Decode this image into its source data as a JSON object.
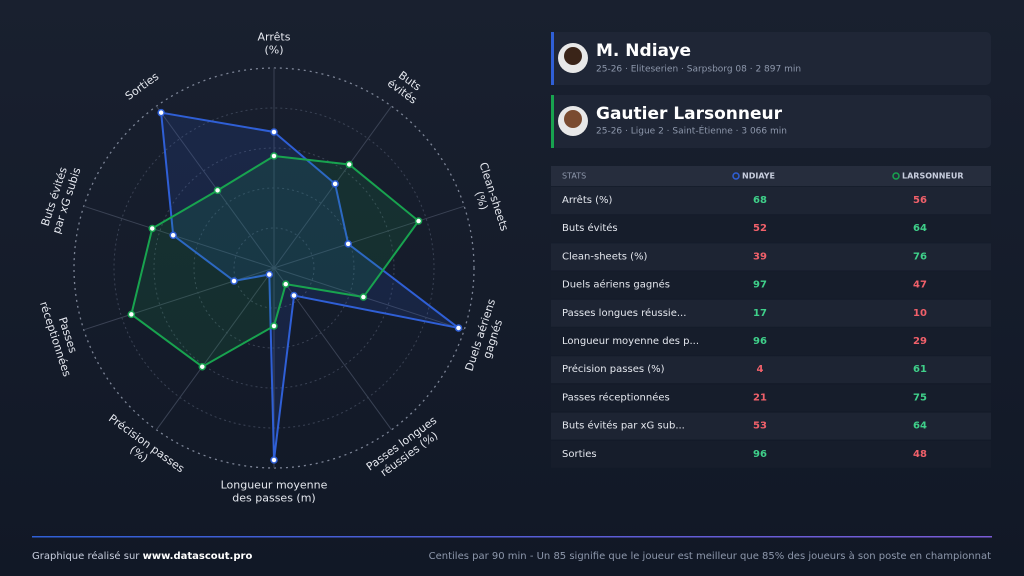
{
  "chart_data": {
    "type": "radar",
    "categories": [
      [
        "Arrêts",
        "(%)"
      ],
      [
        "Buts",
        "évités"
      ],
      [
        "Clean-sheets",
        "(%)"
      ],
      [
        "Duels aériens",
        "gagnés"
      ],
      [
        "Passes longues",
        "réussies (%)"
      ],
      [
        "Longueur moyenne",
        "des passes (m)"
      ],
      [
        "Précision passes",
        "(%)"
      ],
      [
        "Passes",
        "réceptionnées"
      ],
      [
        "Buts évités",
        "par xG subis"
      ],
      [
        "Sorties"
      ]
    ],
    "rlim": [
      0,
      100
    ],
    "rticks": [
      20,
      40,
      60,
      80,
      100
    ],
    "series": [
      {
        "name": "NDIAYE",
        "color": "#2f5fd6",
        "values": [
          68,
          52,
          39,
          97,
          17,
          96,
          4,
          21,
          53,
          96
        ]
      },
      {
        "name": "LARSONNEUR",
        "color": "#18a34f",
        "values": [
          56,
          64,
          76,
          47,
          10,
          29,
          61,
          75,
          64,
          48
        ]
      }
    ]
  },
  "players": [
    {
      "name": "M. Ndiaye",
      "info": "25-26 · Eliteserien · Sarpsborg 08 · 2 897 min",
      "color": "#2f5fd6"
    },
    {
      "name": "Gautier Larsonneur",
      "info": "25-26 · Ligue 2 · Saint-Étienne · 3 066 min",
      "color": "#18a34f"
    }
  ],
  "table": {
    "header": "STATS",
    "row_labels": [
      "Arrêts (%)",
      "Buts évités",
      "Clean-sheets (%)",
      "Duels aériens gagnés",
      "Passes longues réussie...",
      "Longueur moyenne des p...",
      "Précision passes (%)",
      "Passes réceptionnées",
      "Buts évités par xG sub...",
      "Sorties"
    ]
  },
  "footer": {
    "left": "Graphique réalisé sur",
    "site": "www.datascout.pro",
    "right": "Centiles par 90 min - Un 85 signifie que le joueur est meilleur que 85% des joueurs à son poste en championnat"
  }
}
